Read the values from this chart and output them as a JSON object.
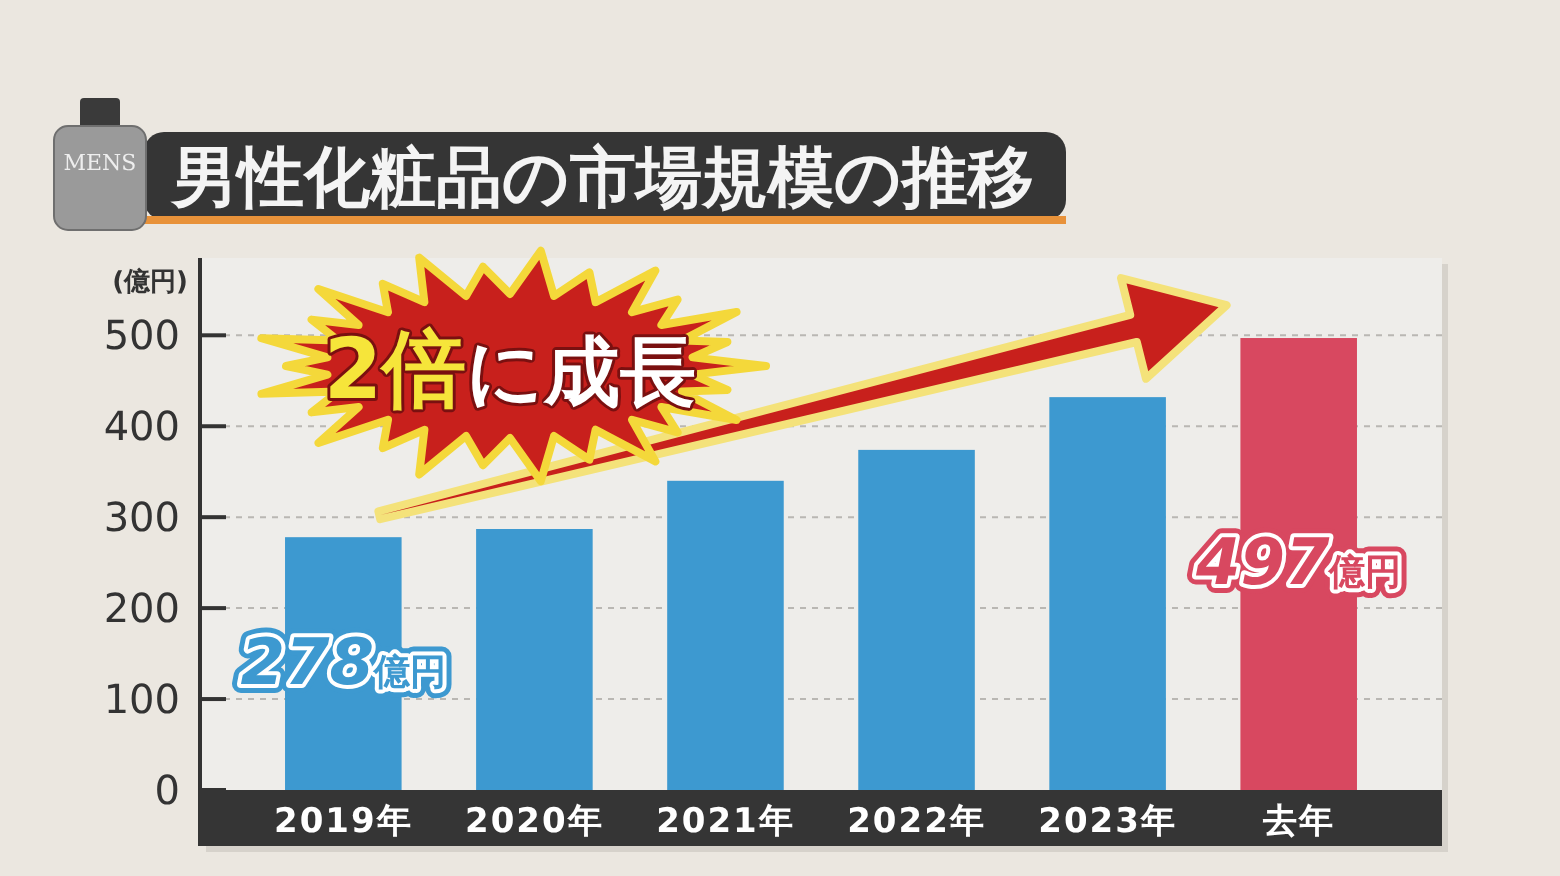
{
  "chart_data": {
    "type": "bar",
    "title": "男性化粧品の市場規模の推移",
    "ylabel": "(億円)",
    "categories": [
      "2019年",
      "2020年",
      "2021年",
      "2022年",
      "2023年",
      "去年"
    ],
    "values": [
      278,
      287,
      340,
      374,
      432,
      497
    ],
    "colors": [
      "#3d99d0",
      "#3d99d0",
      "#3d99d0",
      "#3d99d0",
      "#3d99d0",
      "#d84860"
    ],
    "value_labels": [
      "278億円",
      null,
      null,
      null,
      null,
      "497億円"
    ],
    "ylim": [
      0,
      585
    ],
    "yticks": [
      0,
      100,
      200,
      300,
      400,
      500
    ],
    "grid": "y",
    "annotations": [
      "2倍に成長",
      "MENS"
    ]
  }
}
